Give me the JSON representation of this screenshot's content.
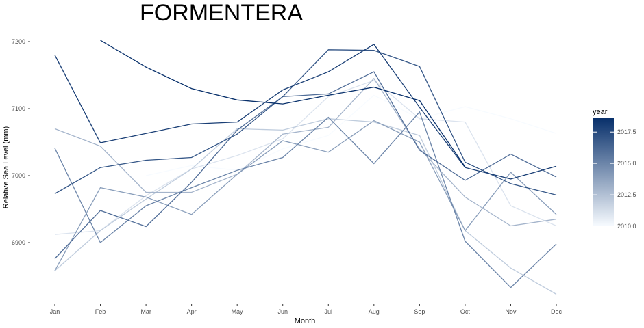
{
  "chart_data": {
    "type": "line",
    "title": "FORMENTERA",
    "xlabel": "Month",
    "ylabel": "Relative Sea Level (mm)",
    "categories": [
      "Jan",
      "Feb",
      "Mar",
      "Apr",
      "May",
      "Jun",
      "Jul",
      "Aug",
      "Sep",
      "Oct",
      "Nov",
      "Dec"
    ],
    "ylim": [
      6840,
      7210
    ],
    "yticks": [
      6900,
      7000,
      7100,
      7200
    ],
    "grid": false,
    "legend": {
      "title": "year",
      "position": "right",
      "type": "colorbar",
      "range": [
        2010,
        2018.6
      ],
      "ticks": [
        "2010.0",
        "2012.5",
        "2015.0",
        "2017.5"
      ],
      "color_low": "#f7fbff",
      "color_high": "#08306b"
    },
    "series": [
      {
        "year": 2010,
        "values": [
          6978,
          null,
          7000,
          7015,
          7008,
          7040,
          7060,
          7120,
          7085,
          7103,
          7085,
          7063
        ]
      },
      {
        "year": 2011,
        "values": [
          6912,
          6918,
          6970,
          7010,
          7030,
          7055,
          7118,
          7142,
          7085,
          7080,
          6955,
          6925
        ]
      },
      {
        "year": 2012,
        "values": [
          6858,
          6918,
          6965,
          7010,
          7070,
          7068,
          7085,
          7080,
          7060,
          6918,
          6862,
          6823
        ]
      },
      {
        "year": 2013,
        "values": [
          7070,
          7044,
          6975,
          6975,
          7002,
          7062,
          7072,
          7145,
          7040,
          6968,
          6925,
          6935
        ]
      },
      {
        "year": 2014,
        "values": [
          6858,
          6982,
          6968,
          6942,
          7002,
          7052,
          7035,
          7082,
          7050,
          6918,
          7005,
          6942
        ]
      },
      {
        "year": 2015,
        "values": [
          7041,
          6900,
          6955,
          6982,
          7008,
          7027,
          7087,
          7018,
          7095,
          6902,
          6833,
          6898
        ]
      },
      {
        "year": 2016,
        "values": [
          6876,
          6948,
          6924,
          6990,
          7068,
          7118,
          7122,
          7155,
          7038,
          6993,
          7032,
          6998
        ]
      },
      {
        "year": 2017,
        "values": [
          6973,
          7012,
          7023,
          7027,
          7062,
          7118,
          7188,
          7187,
          7163,
          7020,
          6988,
          6971
        ]
      },
      {
        "year": 2018,
        "values": [
          7180,
          7049,
          7063,
          7077,
          7080,
          7128,
          7155,
          7196,
          7102,
          7012,
          6995,
          7014
        ]
      },
      {
        "year": 2018.6,
        "values": [
          null,
          7202,
          7162,
          7130,
          7113,
          7107,
          7120,
          7132,
          7112,
          7013,
          null,
          null
        ]
      }
    ]
  }
}
